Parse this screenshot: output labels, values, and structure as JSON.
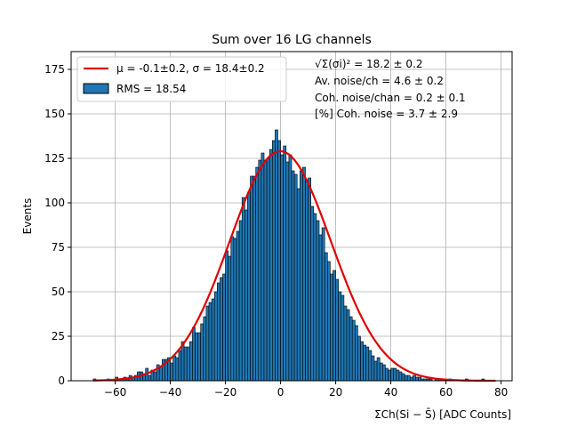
{
  "chart_data": {
    "type": "bar",
    "title": "Sum over 16 LG channels",
    "xlabel": "ΣCh(Si − S̄) [ADC Counts]",
    "ylabel": "Events",
    "xlim": [
      -76,
      84
    ],
    "ylim": [
      0,
      185
    ],
    "x_ticks": [
      -60,
      -40,
      -20,
      0,
      20,
      40,
      60,
      80
    ],
    "y_ticks": [
      0,
      25,
      50,
      75,
      100,
      125,
      150,
      175
    ],
    "grid": true,
    "bar_color": "#1f77b4",
    "bar_edge_color": "#000000",
    "fit_color": "#e00000",
    "bin_width": 1,
    "histogram": {
      "name": "RMS = 18.54",
      "bin_centers": [
        -67.5,
        -66.5,
        -65.5,
        -64.5,
        -63.5,
        -62.5,
        -61.5,
        -60.5,
        -59.5,
        -58.5,
        -57.5,
        -56.5,
        -55.5,
        -54.5,
        -53.5,
        -52.5,
        -51.5,
        -50.5,
        -49.5,
        -48.5,
        -47.5,
        -46.5,
        -45.5,
        -44.5,
        -43.5,
        -42.5,
        -41.5,
        -40.5,
        -39.5,
        -38.5,
        -37.5,
        -36.5,
        -35.5,
        -34.5,
        -33.5,
        -32.5,
        -31.5,
        -30.5,
        -29.5,
        -28.5,
        -27.5,
        -26.5,
        -25.5,
        -24.5,
        -23.5,
        -22.5,
        -21.5,
        -20.5,
        -19.5,
        -18.5,
        -17.5,
        -16.5,
        -15.5,
        -14.5,
        -13.5,
        -12.5,
        -11.5,
        -10.5,
        -9.5,
        -8.5,
        -7.5,
        -6.5,
        -5.5,
        -4.5,
        -3.5,
        -2.5,
        -1.5,
        -0.5,
        0.5,
        1.5,
        2.5,
        3.5,
        4.5,
        5.5,
        6.5,
        7.5,
        8.5,
        9.5,
        10.5,
        11.5,
        12.5,
        13.5,
        14.5,
        15.5,
        16.5,
        17.5,
        18.5,
        19.5,
        20.5,
        21.5,
        22.5,
        23.5,
        24.5,
        25.5,
        26.5,
        27.5,
        28.5,
        29.5,
        30.5,
        31.5,
        32.5,
        33.5,
        34.5,
        35.5,
        36.5,
        37.5,
        38.5,
        39.5,
        40.5,
        41.5,
        42.5,
        43.5,
        44.5,
        45.5,
        46.5,
        47.5,
        48.5,
        49.5,
        50.5,
        51.5,
        52.5,
        53.5,
        54.5,
        55.5,
        56.5,
        57.5,
        58.5,
        59.5,
        60.5,
        61.5,
        62.5,
        63.5,
        64.5,
        65.5,
        66.5,
        67.5,
        68.5,
        69.5,
        70.5,
        71.5,
        72.5,
        73.5
      ],
      "counts": [
        1,
        0,
        0,
        0,
        0,
        1,
        0,
        0,
        2,
        1,
        1,
        2,
        1,
        3,
        2,
        3,
        5,
        5,
        4,
        7,
        3,
        6,
        5,
        9,
        8,
        12,
        12,
        13,
        10,
        14,
        13,
        17,
        22,
        19,
        19,
        22,
        30,
        27,
        27,
        32,
        36,
        42,
        44,
        46,
        50,
        55,
        58,
        60,
        73,
        70,
        81,
        80,
        84,
        90,
        103,
        96,
        106,
        115,
        115,
        120,
        124,
        128,
        124,
        125,
        130,
        135,
        141,
        135,
        127,
        132,
        123,
        127,
        118,
        116,
        108,
        118,
        120,
        113,
        114,
        98,
        94,
        90,
        82,
        86,
        72,
        67,
        60,
        62,
        57,
        50,
        48,
        42,
        40,
        36,
        34,
        31,
        25,
        22,
        20,
        19,
        17,
        14,
        11,
        13,
        10,
        9,
        7,
        6,
        7,
        7,
        6,
        5,
        4,
        3,
        3,
        2,
        3,
        2,
        2,
        1,
        1,
        1,
        1,
        0,
        1,
        1,
        0,
        0,
        0,
        1,
        0,
        0,
        0,
        0,
        0,
        1,
        0,
        0,
        0,
        0,
        0,
        1
      ]
    },
    "series": [
      {
        "name": "μ = -0.1±0.2, σ = 18.4±0.2",
        "type": "gaussian_fit",
        "mu": -0.1,
        "sigma": 18.4,
        "amplitude": 129,
        "x_range": [
          -68,
          78
        ]
      }
    ],
    "legend": {
      "placement": "top-left",
      "entries": [
        {
          "label": "μ = -0.1±0.2, σ = 18.4±0.2",
          "kind": "line"
        },
        {
          "label": "RMS = 18.54",
          "kind": "bar"
        }
      ]
    },
    "annotations": [
      {
        "label": "√Σ(σi)² = 18.2 ± 0.2"
      },
      {
        "label": "Av. noise/ch  = 4.6 ± 0.2"
      },
      {
        "label": "Coh. noise/chan  = 0.2 ± 0.1"
      },
      {
        "label": "[%] Coh. noise  = 3.7 ± 2.9"
      }
    ]
  }
}
